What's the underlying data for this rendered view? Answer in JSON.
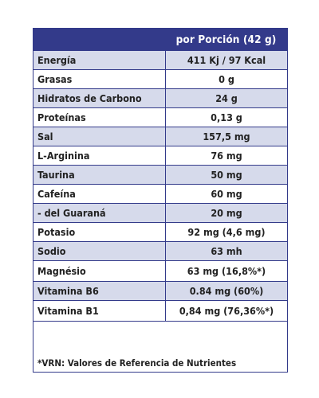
{
  "header": {
    "portion_label": "por Porción (42 g)"
  },
  "rows": [
    {
      "name": "Energía",
      "value": "411 Kj / 97 Kcal"
    },
    {
      "name": "Grasas",
      "value": "0 g"
    },
    {
      "name": "Hidratos de Carbono",
      "value": "24 g"
    },
    {
      "name": "Proteínas",
      "value": "0,13 g"
    },
    {
      "name": "Sal",
      "value": "157,5 mg"
    },
    {
      "name": "L-Arginina",
      "value": "76  mg"
    },
    {
      "name": "Taurina",
      "value": "50 mg"
    },
    {
      "name": "Cafeína",
      "value": "60 mg"
    },
    {
      "name": "- del Guaraná",
      "value": "20 mg"
    },
    {
      "name": "Potasio",
      "value": "92 mg (4,6 mg)"
    },
    {
      "name": "Sodio",
      "value": "63 mh"
    },
    {
      "name": "Magnésio",
      "value": "63 mg (16,8%*)"
    },
    {
      "name": "Vitamina B6",
      "value": "0.84 mg (60%)"
    },
    {
      "name": "Vitamina B1",
      "value": "0,84 mg (76,36%*)"
    }
  ],
  "footnote": "*VRN: Valores de Referencia de Nutrientes",
  "colors": {
    "header_bg": "#333a8a",
    "shaded_row": "#d6daeb",
    "border": "#333a8a"
  }
}
